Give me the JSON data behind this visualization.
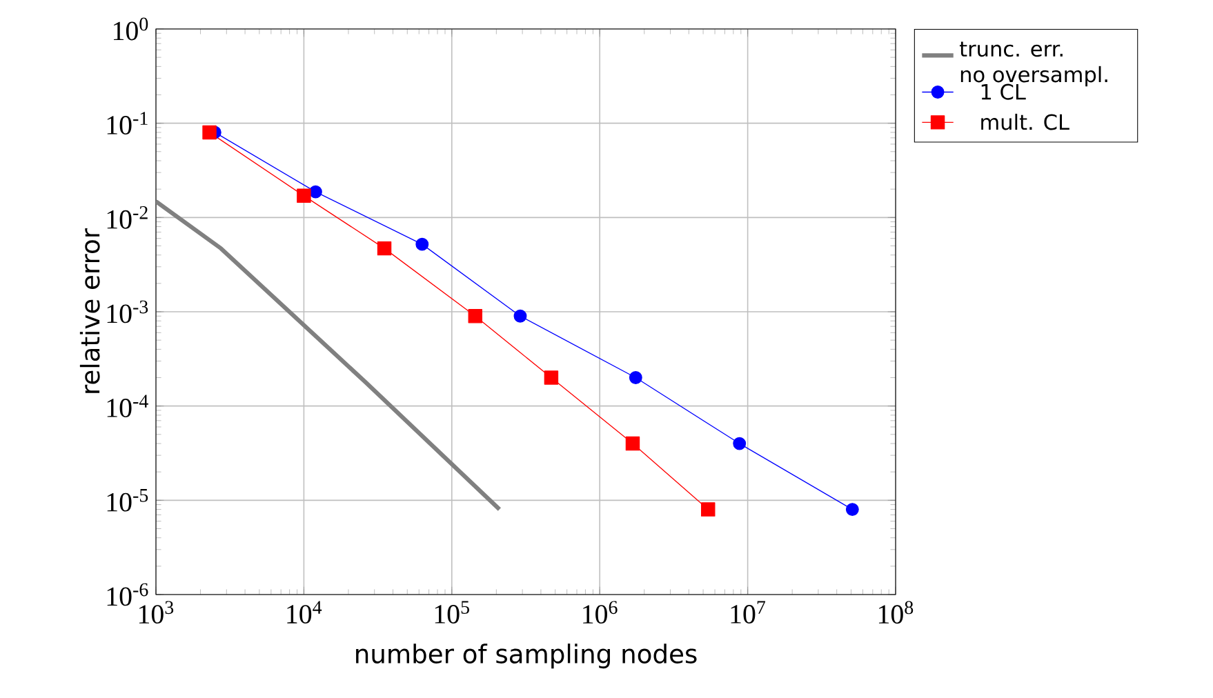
{
  "chart_data": {
    "type": "line",
    "xlabel": "number of sampling nodes",
    "ylabel": "relative error",
    "log": "xy",
    "grid": true,
    "legend": "top right",
    "xlim": [
      1000,
      100000000
    ],
    "ylim": [
      1e-06,
      1
    ],
    "xticks": [
      {
        "value": 1000,
        "label": "10$^{3}$"
      },
      {
        "value": 10000,
        "label": "10$^{4}$"
      },
      {
        "value": 100000,
        "label": "10$^{5}$"
      },
      {
        "value": 1000000,
        "label": "10$^{6}$"
      },
      {
        "value": 10000000,
        "label": "10$^{7}$"
      },
      {
        "value": 100000000,
        "label": "10$^{8}$"
      }
    ],
    "yticks": [
      {
        "value": 1e-06,
        "label": "10$^{-6}$"
      },
      {
        "value": 1e-05,
        "label": "10$^{-5}$"
      },
      {
        "value": 0.0001,
        "label": "10$^{-4}$"
      },
      {
        "value": 0.001,
        "label": "10$^{-3}$"
      },
      {
        "value": 0.01,
        "label": "10$^{-2}$"
      },
      {
        "value": 0.1,
        "label": "10$^{-1}$"
      },
      {
        "value": 1,
        "label": "10$^{0}$"
      }
    ],
    "series": [
      {
        "name": "trunc. err. no oversampl.",
        "color": "#808080",
        "marker": "none",
        "x": [
          1000,
          2750,
          26000,
          210000
        ],
        "values": [
          0.0148,
          0.0047,
          0.00018,
          8e-06
        ]
      },
      {
        "name": "1 CL",
        "color": "#0000ff",
        "marker": "circle",
        "x": [
          2500,
          12000,
          63000,
          290000,
          1750000,
          8800000,
          51000000
        ],
        "values": [
          0.08,
          0.0187,
          0.0052,
          0.0009,
          0.0002,
          4e-05,
          8e-06
        ]
      },
      {
        "name": "mult. CL",
        "color": "#ff0000",
        "marker": "square",
        "x": [
          2300,
          10000,
          35000,
          144000,
          470000,
          1670000,
          5400000
        ],
        "values": [
          0.08,
          0.017,
          0.0047,
          0.0009,
          0.0002,
          4e-05,
          8e-06
        ]
      }
    ]
  }
}
